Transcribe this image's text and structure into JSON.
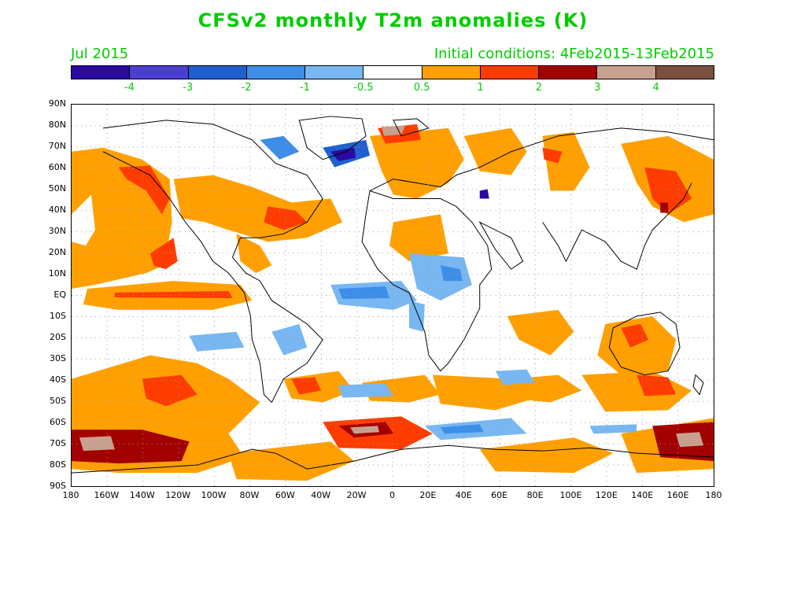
{
  "title": "CFSv2 monthly T2m anomalies (K)",
  "valid_month": "Jul 2015",
  "initial_conditions": "Initial conditions: 4Feb2015-13Feb2015",
  "colorbar": {
    "colors": [
      "#2a0aa0",
      "#4a3fd0",
      "#1f5fd0",
      "#3d8ee8",
      "#78b7f2",
      "#ffffff",
      "#ffa000",
      "#ff3c00",
      "#a30000",
      "#c8a090",
      "#7a5040"
    ],
    "labels": [
      "-4",
      "-3",
      "-2",
      "-1",
      "-0.5",
      "0.5",
      "1",
      "2",
      "3",
      "4"
    ]
  },
  "lat_labels": [
    "90N",
    "80N",
    "70N",
    "60N",
    "50N",
    "40N",
    "30N",
    "20N",
    "10N",
    "EQ",
    "10S",
    "20S",
    "30S",
    "40S",
    "50S",
    "60S",
    "70S",
    "80S",
    "90S"
  ],
  "lon_labels": [
    "180",
    "160W",
    "140W",
    "120W",
    "100W",
    "80W",
    "60W",
    "40W",
    "20W",
    "0",
    "20E",
    "40E",
    "60E",
    "80E",
    "100E",
    "120E",
    "140E",
    "160E",
    "180"
  ]
}
